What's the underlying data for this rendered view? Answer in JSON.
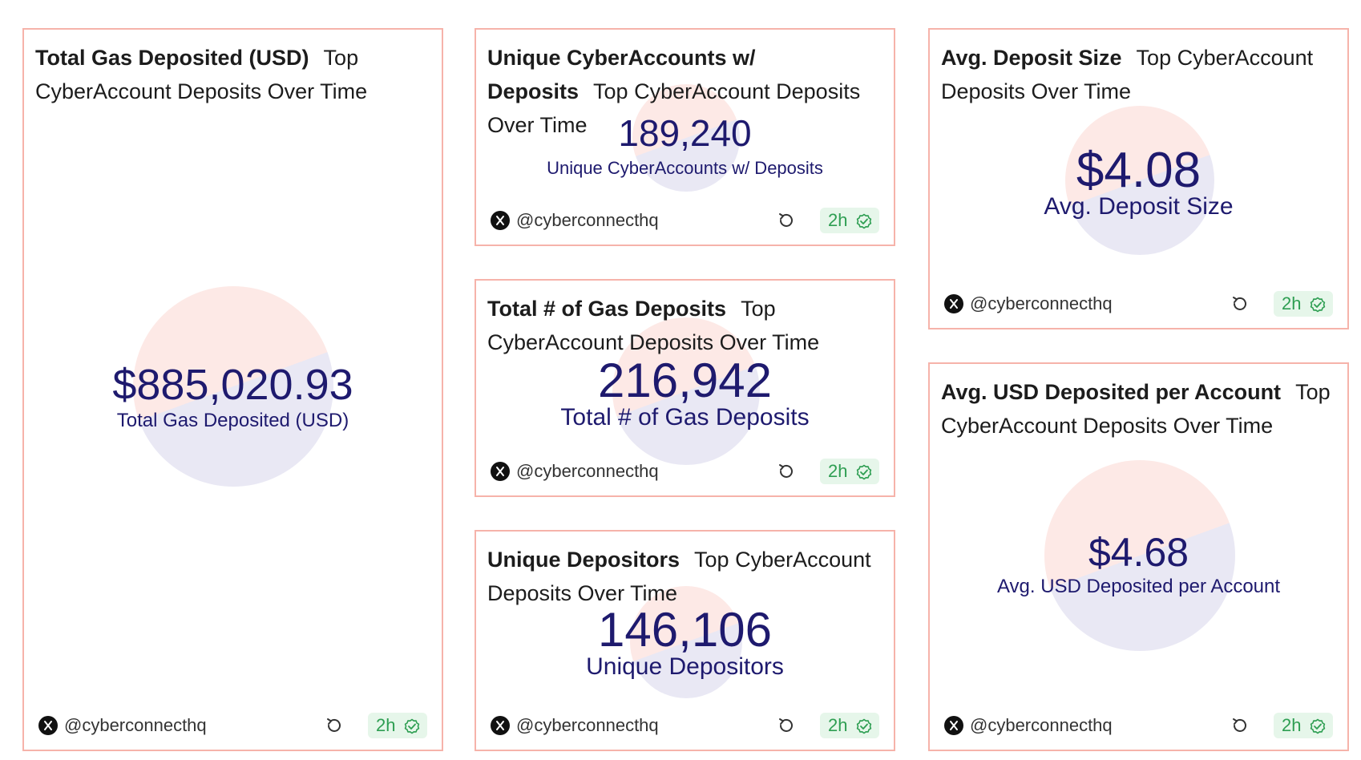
{
  "cards": [
    {
      "title": "Total Gas Deposited (USD)",
      "subtitle": "Top CyberAccount Deposits Over Time",
      "value": "$885,020.93",
      "label": "Total Gas Deposited (USD)",
      "handle": "@cyberconnecthq",
      "freshness": "2h"
    },
    {
      "title": "Unique CyberAccounts w/ Deposits",
      "subtitle": "Top CyberAccount Deposits Over Time",
      "value": "189,240",
      "label": "Unique CyberAccounts w/ Deposits",
      "handle": "@cyberconnecthq",
      "freshness": "2h"
    },
    {
      "title": "Total # of Gas Deposits",
      "subtitle": "Top CyberAccount Deposits Over Time",
      "value": "216,942",
      "label": "Total # of Gas Deposits",
      "handle": "@cyberconnecthq",
      "freshness": "2h"
    },
    {
      "title": "Unique Depositors",
      "subtitle": "Top CyberAccount Deposits Over Time",
      "value": "146,106",
      "label": "Unique Depositors",
      "handle": "@cyberconnecthq",
      "freshness": "2h"
    },
    {
      "title": "Avg. Deposit Size",
      "subtitle": "Top CyberAccount Deposits Over Time",
      "value": "$4.08",
      "label": "Avg. Deposit Size",
      "handle": "@cyberconnecthq",
      "freshness": "2h"
    },
    {
      "title": "Avg. USD Deposited per Account",
      "subtitle": "Top CyberAccount Deposits Over Time",
      "value": "$4.68",
      "label": "Avg. USD Deposited per Account",
      "handle": "@cyberconnecthq",
      "freshness": "2h"
    }
  ],
  "colors": {
    "border": "#f6b3aa",
    "value": "#1e1a6e",
    "badge_bg": "#e6f6ea",
    "badge_text": "#2e9e52"
  },
  "icons": {
    "author": "x-logo-icon",
    "refresh": "refresh-icon",
    "status": "check-circle-icon"
  }
}
